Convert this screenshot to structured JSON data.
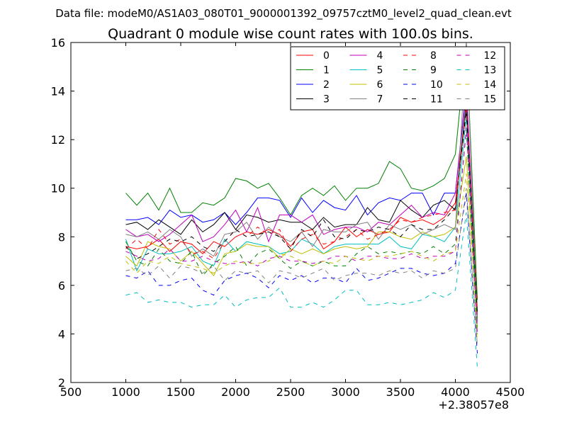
{
  "chart_data": {
    "type": "line",
    "suptitle": "Data file: modeM0/AS1A03_080T01_9000001392_09757cztM0_level2_quad_clean.evt",
    "title": "Quadrant 0 module wise count rates with 100.0s bins.",
    "xlabel": "",
    "ylabel": "",
    "xlim": [
      500,
      4500
    ],
    "ylim": [
      2,
      16
    ],
    "xticks": [
      500,
      1000,
      1500,
      2000,
      2500,
      3000,
      3500,
      4000,
      4500
    ],
    "yticks": [
      2,
      4,
      6,
      8,
      10,
      12,
      14,
      16
    ],
    "x_offset_label": "+2.38057e8",
    "legend_position": "top-right",
    "grid": false,
    "x": [
      1000,
      1100,
      1200,
      1300,
      1400,
      1500,
      1600,
      1700,
      1800,
      1900,
      2000,
      2100,
      2200,
      2300,
      2400,
      2500,
      2600,
      2700,
      2800,
      2900,
      3000,
      3100,
      3200,
      3300,
      3400,
      3500,
      3600,
      3700,
      3800,
      3900,
      4000,
      4100,
      4200
    ],
    "series": [
      {
        "name": "0",
        "color": "#ff0000",
        "dash": "solid",
        "values": [
          7.6,
          7.5,
          7.6,
          7.9,
          7.4,
          7.8,
          7.7,
          7.3,
          7.8,
          7.6,
          8.0,
          8.2,
          8.1,
          8.3,
          8.1,
          7.6,
          8.2,
          8.3,
          7.5,
          7.8,
          8.4,
          8.0,
          8.3,
          8.1,
          8.2,
          8.8,
          8.6,
          8.7,
          8.5,
          8.8,
          9.4,
          13.5,
          4.8
        ]
      },
      {
        "name": "1",
        "color": "#008000",
        "dash": "solid",
        "values": [
          9.8,
          9.3,
          9.8,
          9.1,
          10.0,
          9.0,
          9.0,
          9.4,
          9.3,
          9.6,
          10.4,
          10.3,
          10.0,
          10.2,
          9.6,
          8.9,
          9.7,
          10.0,
          9.7,
          10.1,
          9.5,
          10.0,
          10.0,
          10.2,
          11.1,
          10.8,
          10.0,
          9.9,
          10.1,
          10.4,
          11.4,
          16.0,
          5.4
        ]
      },
      {
        "name": "2",
        "color": "#0000ff",
        "dash": "solid",
        "values": [
          8.7,
          8.7,
          8.8,
          8.5,
          9.1,
          8.8,
          8.9,
          8.6,
          8.7,
          9.0,
          8.5,
          9.0,
          9.6,
          9.6,
          9.5,
          8.8,
          9.6,
          9.0,
          9.5,
          9.2,
          9.1,
          9.7,
          8.9,
          9.4,
          9.6,
          9.5,
          9.8,
          9.8,
          8.9,
          9.8,
          9.8,
          14.0,
          4.6
        ]
      },
      {
        "name": "3",
        "color": "#000000",
        "dash": "solid",
        "values": [
          8.5,
          8.6,
          8.3,
          8.7,
          8.4,
          8.1,
          8.7,
          8.2,
          8.5,
          9.0,
          8.3,
          8.9,
          8.8,
          8.6,
          8.7,
          8.6,
          8.6,
          8.3,
          8.8,
          8.4,
          8.5,
          8.5,
          9.2,
          8.7,
          8.6,
          9.5,
          9.1,
          8.8,
          9.3,
          9.5,
          9.1,
          13.6,
          4.9
        ]
      },
      {
        "name": "4",
        "color": "#bf00bf",
        "dash": "solid",
        "values": [
          8.3,
          8.0,
          8.1,
          7.8,
          8.1,
          8.5,
          8.9,
          7.8,
          8.0,
          8.5,
          9.1,
          8.2,
          9.2,
          7.8,
          8.9,
          8.9,
          8.6,
          8.9,
          8.1,
          8.3,
          8.4,
          8.4,
          8.2,
          8.6,
          8.5,
          8.9,
          9.3,
          8.8,
          9.0,
          8.9,
          9.8,
          14.2,
          4.6
        ]
      },
      {
        "name": "5",
        "color": "#00bfbf",
        "dash": "solid",
        "values": [
          7.9,
          6.6,
          7.5,
          7.3,
          7.3,
          7.4,
          7.6,
          7.0,
          6.8,
          7.9,
          7.4,
          7.8,
          7.7,
          7.6,
          7.3,
          7.4,
          7.9,
          7.7,
          7.3,
          7.6,
          7.7,
          7.7,
          7.7,
          7.7,
          8.0,
          7.6,
          7.5,
          8.1,
          8.0,
          7.8,
          8.4,
          13.0,
          4.4
        ]
      },
      {
        "name": "6",
        "color": "#bfbf00",
        "dash": "solid",
        "values": [
          7.2,
          6.8,
          7.8,
          7.6,
          7.5,
          7.0,
          7.4,
          6.9,
          6.4,
          7.3,
          7.4,
          7.7,
          7.6,
          7.6,
          7.1,
          7.5,
          7.3,
          7.5,
          7.3,
          7.5,
          7.6,
          7.5,
          7.6,
          8.2,
          8.2,
          8.0,
          7.9,
          8.2,
          8.0,
          8.1,
          8.4,
          11.3,
          4.3
        ]
      },
      {
        "name": "7",
        "color": "#808080",
        "dash": "solid",
        "values": [
          8.1,
          8.0,
          8.2,
          7.9,
          8.3,
          8.0,
          7.2,
          7.5,
          7.2,
          8.1,
          8.2,
          8.6,
          7.9,
          8.4,
          8.0,
          7.8,
          8.2,
          7.6,
          8.3,
          8.2,
          8.2,
          8.5,
          8.6,
          7.9,
          8.5,
          8.3,
          8.5,
          8.1,
          8.3,
          8.5,
          8.3,
          16.0,
          4.5
        ]
      },
      {
        "name": "8",
        "color": "#ff0000",
        "dash": "dashed",
        "values": [
          7.5,
          7.9,
          7.5,
          8.3,
          7.7,
          7.9,
          7.3,
          7.4,
          7.1,
          7.8,
          8.3,
          8.0,
          8.4,
          8.1,
          8.3,
          7.4,
          7.9,
          8.1,
          7.7,
          7.8,
          8.0,
          8.3,
          7.9,
          8.1,
          8.3,
          8.7,
          8.6,
          8.8,
          8.9,
          9.0,
          9.1,
          13.4,
          5.0
        ]
      },
      {
        "name": "9",
        "color": "#008000",
        "dash": "dashed",
        "values": [
          7.8,
          7.0,
          6.8,
          7.5,
          7.0,
          6.9,
          7.4,
          6.4,
          6.9,
          7.2,
          7.6,
          6.8,
          7.3,
          7.5,
          7.1,
          6.7,
          7.0,
          6.8,
          7.0,
          6.8,
          6.8,
          7.3,
          7.6,
          7.3,
          7.4,
          7.3,
          7.4,
          7.3,
          7.6,
          7.3,
          7.7,
          12.4,
          4.0
        ]
      },
      {
        "name": "10",
        "color": "#0000ff",
        "dash": "dashed",
        "values": [
          6.4,
          6.3,
          6.6,
          6.0,
          6.0,
          6.2,
          6.3,
          5.8,
          5.6,
          6.2,
          6.4,
          6.5,
          6.3,
          5.9,
          6.4,
          6.2,
          6.4,
          6.1,
          6.3,
          6.3,
          6.1,
          6.7,
          6.2,
          6.3,
          6.5,
          6.7,
          6.7,
          6.5,
          6.4,
          6.5,
          6.9,
          9.8,
          3.2
        ]
      },
      {
        "name": "11",
        "color": "#000000",
        "dash": "dashed",
        "values": [
          7.6,
          7.1,
          7.3,
          7.6,
          7.9,
          7.8,
          8.0,
          7.6,
          7.4,
          7.8,
          8.3,
          8.0,
          8.1,
          8.2,
          8.0,
          7.5,
          8.3,
          8.0,
          8.7,
          8.0,
          7.9,
          8.3,
          8.2,
          8.4,
          8.3,
          8.0,
          8.5,
          8.3,
          8.3,
          8.7,
          9.2,
          13.2,
          4.8
        ]
      },
      {
        "name": "12",
        "color": "#bf00bf",
        "dash": "dashed",
        "values": [
          7.4,
          7.2,
          7.0,
          7.1,
          7.5,
          7.0,
          7.0,
          7.2,
          7.0,
          6.9,
          6.9,
          7.0,
          6.8,
          7.1,
          7.2,
          7.0,
          7.0,
          6.9,
          7.0,
          7.2,
          7.2,
          7.0,
          7.2,
          7.2,
          7.1,
          7.1,
          7.3,
          7.1,
          7.2,
          7.2,
          7.4,
          12.5,
          4.0
        ]
      },
      {
        "name": "13",
        "color": "#00bfbf",
        "dash": "dashed",
        "values": [
          5.6,
          5.7,
          5.3,
          5.4,
          5.3,
          5.3,
          5.1,
          5.2,
          5.2,
          5.6,
          5.1,
          5.4,
          5.5,
          5.5,
          5.9,
          5.1,
          5.1,
          5.3,
          5.1,
          5.4,
          5.8,
          5.8,
          5.2,
          5.2,
          5.3,
          5.2,
          5.3,
          5.4,
          5.7,
          5.5,
          5.8,
          9.0,
          2.6
        ]
      },
      {
        "name": "14",
        "color": "#bfbf00",
        "dash": "dashed",
        "values": [
          7.0,
          6.5,
          7.0,
          6.9,
          7.2,
          6.9,
          6.8,
          6.7,
          6.5,
          6.8,
          7.0,
          6.9,
          6.9,
          7.0,
          7.3,
          7.2,
          7.0,
          6.8,
          7.0,
          6.9,
          7.2,
          7.1,
          7.0,
          7.2,
          7.2,
          7.3,
          7.4,
          7.2,
          7.0,
          7.3,
          7.4,
          10.6,
          3.6
        ]
      },
      {
        "name": "15",
        "color": "#808080",
        "dash": "dashed",
        "values": [
          6.6,
          6.7,
          6.4,
          6.8,
          6.3,
          6.8,
          6.7,
          6.5,
          6.8,
          6.2,
          6.6,
          6.5,
          6.6,
          6.1,
          6.6,
          6.5,
          6.3,
          6.5,
          6.7,
          6.2,
          6.4,
          6.5,
          6.5,
          6.4,
          6.6,
          6.5,
          6.6,
          6.3,
          6.6,
          6.5,
          6.7,
          10.0,
          3.5
        ]
      }
    ]
  }
}
